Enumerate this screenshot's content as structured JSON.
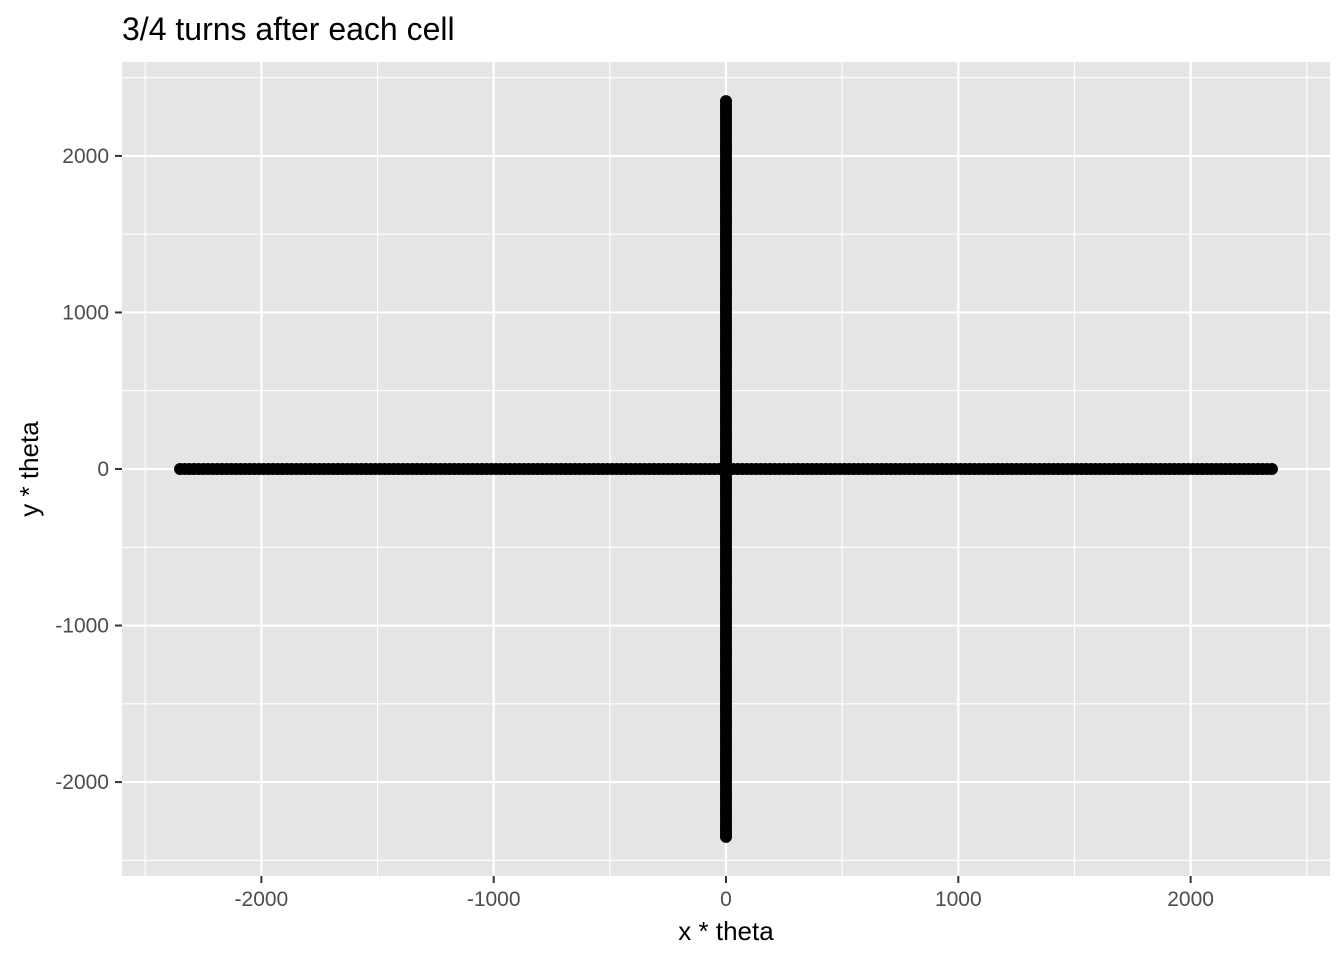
{
  "chart_data": {
    "type": "scatter",
    "title": "3/4 turns after each cell",
    "xlabel": "x * theta",
    "ylabel": "y * theta",
    "xlim": [
      -2600,
      2600
    ],
    "ylim": [
      -2600,
      2600
    ],
    "x_ticks": [
      -2000,
      -1000,
      0,
      1000,
      2000
    ],
    "y_ticks": [
      2000,
      1000,
      0,
      -1000,
      -2000
    ],
    "x_tick_labels": [
      "-2000",
      "-1000",
      "0",
      "1000",
      "2000"
    ],
    "y_tick_labels": [
      "2000",
      "1000",
      "0",
      "-1000",
      "-2000"
    ],
    "grid": true,
    "legend": "none",
    "colors": {
      "panel_background": "#e5e5e5",
      "grid_line": "#ffffff",
      "point": "#000000",
      "tick_label": "#4d4d4d",
      "tick_mark": "#333333"
    },
    "series": [
      {
        "segments": [
          {
            "from": [
              -2350,
              0
            ],
            "to": [
              2350,
              0
            ]
          },
          {
            "from": [
              0,
              -2350
            ],
            "to": [
              0,
              2350
            ]
          }
        ],
        "spacing": 20
      }
    ]
  }
}
